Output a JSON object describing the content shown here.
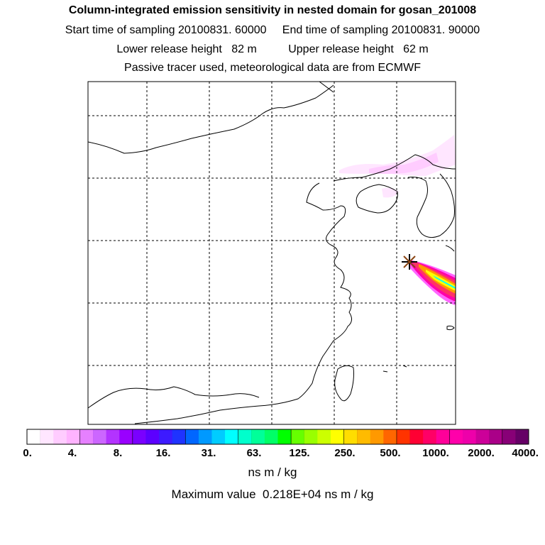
{
  "header": {
    "title": "Column-integrated emission sensitivity in nested domain for gosan_201008",
    "line2": "Start time of sampling 20100831. 60000     End time of sampling 20100831. 90000",
    "line3": "Lower release height   82 m          Upper release height   62 m",
    "line4": "Passive tracer used, meteorological data are from ECMWF"
  },
  "map": {
    "gridlines": "dashed",
    "release_marker": "star-icon",
    "plume_colors": [
      "#ff66ff",
      "#ff33cc",
      "#ff0099",
      "#ff0066",
      "#ff3333",
      "#ff9900",
      "#ffff00",
      "#00ffff"
    ]
  },
  "colorbar": {
    "colors": [
      "#ffffff",
      "#ffe6ff",
      "#ffccff",
      "#ffb3ff",
      "#e680ff",
      "#cc66ff",
      "#b333ff",
      "#9900ff",
      "#7a00ff",
      "#5c00ff",
      "#3d1aff",
      "#1f33ff",
      "#0066ff",
      "#0099ff",
      "#00ccff",
      "#00ffff",
      "#00ffcc",
      "#00ff99",
      "#00ff66",
      "#00ff00",
      "#66ff00",
      "#99ff00",
      "#ccff00",
      "#ffff00",
      "#ffdd00",
      "#ffbb00",
      "#ff9900",
      "#ff6600",
      "#ff3300",
      "#ff0033",
      "#ff0066",
      "#ff0099",
      "#ff00aa",
      "#ee00aa",
      "#cc0099",
      "#aa0088",
      "#880077",
      "#660066"
    ],
    "tick_labels": [
      "0.",
      "4.",
      "8.",
      "16.",
      "31.",
      "63.",
      "125.",
      "250.",
      "500.",
      "1000.",
      "2000.",
      "4000."
    ],
    "units": "ns m / kg",
    "max_value_text": "Maximum value  0.218E+04 ns m / kg"
  }
}
